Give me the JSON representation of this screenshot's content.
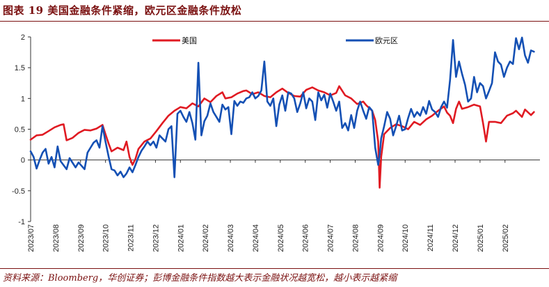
{
  "title": "图表 19   美国金融条件紧缩，欧元区金融条件放松",
  "source": "资料来源：Bloomberg，华创证券；彭博金融条件指数越大表示金融状况越宽松，越小表示越紧缩",
  "chart_data": {
    "type": "line",
    "ylim": [
      -1,
      2
    ],
    "yticks": [
      "-1",
      "-0.5",
      "0",
      "0.5",
      "1",
      "1.5",
      "2"
    ],
    "ytick_values": [
      -1,
      -0.5,
      0,
      0.5,
      1,
      1.5,
      2
    ],
    "xlim": [
      2023.5,
      2025.2
    ],
    "xtick_labels": [
      "2023/07",
      "2023/08",
      "2023/09",
      "2023/10",
      "2023/11",
      "2023/12",
      "2024/01",
      "2024/02",
      "2024/03",
      "2024/04",
      "2024/05",
      "2024/06",
      "2024/07",
      "2024/08",
      "2024/09",
      "2024/10",
      "2024/11",
      "2024/12",
      "2025/01",
      "2025/02"
    ],
    "legend_position": "top",
    "series": [
      {
        "name": "美国",
        "color": "#e01a22",
        "points": [
          [
            2023.5,
            0.33
          ],
          [
            2023.52,
            0.4
          ],
          [
            2023.54,
            0.41
          ],
          [
            2023.56,
            0.47
          ],
          [
            2023.58,
            0.53
          ],
          [
            2023.6,
            0.57
          ],
          [
            2023.61,
            0.58
          ],
          [
            2023.62,
            0.32
          ],
          [
            2023.64,
            0.36
          ],
          [
            2023.66,
            0.44
          ],
          [
            2023.68,
            0.49
          ],
          [
            2023.7,
            0.48
          ],
          [
            2023.72,
            0.51
          ],
          [
            2023.74,
            0.57
          ],
          [
            2023.75,
            0.42
          ],
          [
            2023.76,
            0.27
          ],
          [
            2023.77,
            0.14
          ],
          [
            2023.79,
            0.2
          ],
          [
            2023.81,
            0.16
          ],
          [
            2023.82,
            0.3
          ],
          [
            2023.83,
            0.05
          ],
          [
            2023.84,
            -0.08
          ],
          [
            2023.85,
            0.02
          ],
          [
            2023.86,
            0.18
          ],
          [
            2023.88,
            0.3
          ],
          [
            2023.9,
            0.35
          ],
          [
            2023.92,
            0.47
          ],
          [
            2023.94,
            0.6
          ],
          [
            2023.96,
            0.72
          ],
          [
            2023.98,
            0.8
          ],
          [
            2024.0,
            0.86
          ],
          [
            2024.02,
            0.84
          ],
          [
            2024.04,
            0.92
          ],
          [
            2024.06,
            0.87
          ],
          [
            2024.08,
            1.0
          ],
          [
            2024.1,
            0.94
          ],
          [
            2024.12,
            1.04
          ],
          [
            2024.14,
            1.1
          ],
          [
            2024.15,
            1.0
          ],
          [
            2024.17,
            1.02
          ],
          [
            2024.19,
            1.08
          ],
          [
            2024.21,
            1.12
          ],
          [
            2024.22,
            1.13
          ],
          [
            2024.24,
            1.07
          ],
          [
            2024.26,
            1.1
          ],
          [
            2024.28,
            1.04
          ],
          [
            2024.3,
            1.02
          ],
          [
            2024.32,
            1.1
          ],
          [
            2024.34,
            1.16
          ],
          [
            2024.36,
            1.09
          ],
          [
            2024.38,
            1.04
          ],
          [
            2024.4,
            1.03
          ],
          [
            2024.42,
            1.14
          ],
          [
            2024.44,
            1.18
          ],
          [
            2024.46,
            1.13
          ],
          [
            2024.48,
            1.1
          ],
          [
            2024.5,
            1.05
          ],
          [
            2024.52,
            1.09
          ],
          [
            2024.53,
            1.2
          ],
          [
            2024.55,
            1.05
          ],
          [
            2024.57,
            1.0
          ],
          [
            2024.59,
            0.91
          ],
          [
            2024.61,
            0.95
          ],
          [
            2024.62,
            0.89
          ],
          [
            2024.64,
            0.8
          ],
          [
            2024.65,
            0.65
          ],
          [
            2024.66,
            0.3
          ],
          [
            2024.665,
            -0.45
          ],
          [
            2024.67,
            0.05
          ],
          [
            2024.68,
            0.42
          ],
          [
            2024.7,
            0.52
          ],
          [
            2024.72,
            0.58
          ],
          [
            2024.74,
            0.55
          ],
          [
            2024.76,
            0.5
          ],
          [
            2024.78,
            0.62
          ],
          [
            2024.8,
            0.57
          ],
          [
            2024.82,
            0.66
          ],
          [
            2024.84,
            0.72
          ],
          [
            2024.86,
            0.8
          ],
          [
            2024.88,
            0.87
          ],
          [
            2024.89,
            0.77
          ],
          [
            2024.9,
            0.72
          ],
          [
            2024.91,
            0.6
          ],
          [
            2024.92,
            0.83
          ],
          [
            2024.93,
            0.95
          ],
          [
            2024.94,
            0.83
          ],
          [
            2024.96,
            0.86
          ],
          [
            2024.98,
            0.9
          ],
          [
            2025.0,
            0.87
          ],
          [
            2025.01,
            0.6
          ],
          [
            2025.02,
            0.3
          ],
          [
            2025.03,
            0.62
          ],
          [
            2025.05,
            0.62
          ],
          [
            2025.07,
            0.6
          ],
          [
            2025.09,
            0.72
          ],
          [
            2025.11,
            0.76
          ],
          [
            2025.12,
            0.8
          ],
          [
            2025.14,
            0.7
          ],
          [
            2025.15,
            0.82
          ],
          [
            2025.17,
            0.73
          ],
          [
            2025.18,
            0.78
          ]
        ]
      },
      {
        "name": "欧元区",
        "color": "#1450b4",
        "points": [
          [
            2023.5,
            0.14
          ],
          [
            2023.51,
            0.05
          ],
          [
            2023.52,
            -0.14
          ],
          [
            2023.53,
            0.0
          ],
          [
            2023.54,
            0.12
          ],
          [
            2023.55,
            0.18
          ],
          [
            2023.56,
            -0.06
          ],
          [
            2023.57,
            0.05
          ],
          [
            2023.58,
            -0.12
          ],
          [
            2023.59,
            0.22
          ],
          [
            2023.6,
            -0.02
          ],
          [
            2023.62,
            -0.15
          ],
          [
            2023.63,
            0.03
          ],
          [
            2023.65,
            -0.12
          ],
          [
            2023.66,
            -0.04
          ],
          [
            2023.68,
            -0.15
          ],
          [
            2023.69,
            0.12
          ],
          [
            2023.7,
            0.2
          ],
          [
            2023.71,
            0.28
          ],
          [
            2023.72,
            0.32
          ],
          [
            2023.73,
            0.2
          ],
          [
            2023.74,
            0.55
          ],
          [
            2023.75,
            0.3
          ],
          [
            2023.76,
            0.06
          ],
          [
            2023.77,
            -0.15
          ],
          [
            2023.78,
            -0.17
          ],
          [
            2023.79,
            -0.25
          ],
          [
            2023.8,
            -0.19
          ],
          [
            2023.81,
            -0.28
          ],
          [
            2023.82,
            -0.22
          ],
          [
            2023.83,
            -0.12
          ],
          [
            2023.84,
            -0.2
          ],
          [
            2023.85,
            -0.08
          ],
          [
            2023.86,
            0.05
          ],
          [
            2023.87,
            0.15
          ],
          [
            2023.88,
            0.22
          ],
          [
            2023.89,
            0.3
          ],
          [
            2023.9,
            0.24
          ],
          [
            2023.91,
            0.3
          ],
          [
            2023.92,
            0.2
          ],
          [
            2023.93,
            0.4
          ],
          [
            2023.94,
            0.35
          ],
          [
            2023.95,
            0.3
          ],
          [
            2023.96,
            0.5
          ],
          [
            2023.97,
            0.55
          ],
          [
            2023.98,
            -0.28
          ],
          [
            2023.99,
            0.75
          ],
          [
            2024.0,
            0.8
          ],
          [
            2024.01,
            0.7
          ],
          [
            2024.02,
            0.62
          ],
          [
            2024.03,
            0.78
          ],
          [
            2024.04,
            0.6
          ],
          [
            2024.05,
            0.33
          ],
          [
            2024.06,
            1.58
          ],
          [
            2024.07,
            0.4
          ],
          [
            2024.08,
            0.63
          ],
          [
            2024.09,
            0.72
          ],
          [
            2024.1,
            0.92
          ],
          [
            2024.11,
            0.78
          ],
          [
            2024.12,
            0.7
          ],
          [
            2024.13,
            0.62
          ],
          [
            2024.14,
            0.9
          ],
          [
            2024.15,
            0.82
          ],
          [
            2024.16,
            0.86
          ],
          [
            2024.17,
            0.42
          ],
          [
            2024.18,
            0.96
          ],
          [
            2024.19,
            0.88
          ],
          [
            2024.2,
            0.95
          ],
          [
            2024.21,
            0.93
          ],
          [
            2024.22,
            1.0
          ],
          [
            2024.23,
            1.02
          ],
          [
            2024.24,
            1.1
          ],
          [
            2024.25,
            1.0
          ],
          [
            2024.26,
            1.04
          ],
          [
            2024.27,
            1.13
          ],
          [
            2024.28,
            1.6
          ],
          [
            2024.29,
            0.95
          ],
          [
            2024.3,
            0.88
          ],
          [
            2024.31,
            1.0
          ],
          [
            2024.32,
            0.55
          ],
          [
            2024.33,
            0.9
          ],
          [
            2024.34,
            1.05
          ],
          [
            2024.35,
            0.8
          ],
          [
            2024.36,
            1.1
          ],
          [
            2024.37,
            1.08
          ],
          [
            2024.38,
            1.0
          ],
          [
            2024.39,
            0.78
          ],
          [
            2024.4,
            0.92
          ],
          [
            2024.41,
            1.1
          ],
          [
            2024.42,
            0.84
          ],
          [
            2024.43,
            1.0
          ],
          [
            2024.44,
            0.95
          ],
          [
            2024.45,
            0.65
          ],
          [
            2024.46,
            1.1
          ],
          [
            2024.47,
            0.97
          ],
          [
            2024.48,
            1.06
          ],
          [
            2024.49,
            0.85
          ],
          [
            2024.5,
            1.08
          ],
          [
            2024.51,
            0.95
          ],
          [
            2024.52,
            0.8
          ],
          [
            2024.53,
            0.95
          ],
          [
            2024.54,
            0.52
          ],
          [
            2024.55,
            0.6
          ],
          [
            2024.56,
            0.48
          ],
          [
            2024.57,
            0.73
          ],
          [
            2024.58,
            0.52
          ],
          [
            2024.59,
            0.8
          ],
          [
            2024.6,
            0.95
          ],
          [
            2024.61,
            0.8
          ],
          [
            2024.62,
            0.67
          ],
          [
            2024.63,
            0.86
          ],
          [
            2024.64,
            0.8
          ],
          [
            2024.65,
            0.2
          ],
          [
            2024.66,
            -0.08
          ],
          [
            2024.665,
            0.08
          ],
          [
            2024.67,
            0.35
          ],
          [
            2024.68,
            0.55
          ],
          [
            2024.69,
            0.78
          ],
          [
            2024.7,
            0.67
          ],
          [
            2024.71,
            0.4
          ],
          [
            2024.72,
            0.55
          ],
          [
            2024.73,
            0.72
          ],
          [
            2024.74,
            0.48
          ],
          [
            2024.75,
            0.5
          ],
          [
            2024.76,
            0.68
          ],
          [
            2024.77,
            0.83
          ],
          [
            2024.78,
            0.7
          ],
          [
            2024.79,
            0.78
          ],
          [
            2024.8,
            0.72
          ],
          [
            2024.81,
            0.86
          ],
          [
            2024.82,
            0.75
          ],
          [
            2024.83,
            0.96
          ],
          [
            2024.84,
            0.82
          ],
          [
            2024.85,
            0.78
          ],
          [
            2024.86,
            0.7
          ],
          [
            2024.87,
            0.86
          ],
          [
            2024.88,
            0.95
          ],
          [
            2024.89,
            0.85
          ],
          [
            2024.9,
            1.3
          ],
          [
            2024.91,
            1.95
          ],
          [
            2024.92,
            1.35
          ],
          [
            2024.93,
            1.6
          ],
          [
            2024.94,
            1.4
          ],
          [
            2024.95,
            1.22
          ],
          [
            2024.96,
            0.95
          ],
          [
            2024.97,
            1.0
          ],
          [
            2024.98,
            1.35
          ],
          [
            2024.99,
            1.1
          ],
          [
            2025.0,
            1.25
          ],
          [
            2025.01,
            1.2
          ],
          [
            2025.02,
            1.0
          ],
          [
            2025.03,
            1.12
          ],
          [
            2025.04,
            1.25
          ],
          [
            2025.05,
            1.75
          ],
          [
            2025.06,
            1.6
          ],
          [
            2025.07,
            1.55
          ],
          [
            2025.08,
            1.35
          ],
          [
            2025.09,
            1.5
          ],
          [
            2025.1,
            1.6
          ],
          [
            2025.11,
            1.56
          ],
          [
            2025.12,
            1.98
          ],
          [
            2025.13,
            1.8
          ],
          [
            2025.14,
            1.99
          ],
          [
            2025.15,
            1.7
          ],
          [
            2025.16,
            1.58
          ],
          [
            2025.17,
            1.78
          ],
          [
            2025.18,
            1.76
          ]
        ]
      }
    ]
  }
}
